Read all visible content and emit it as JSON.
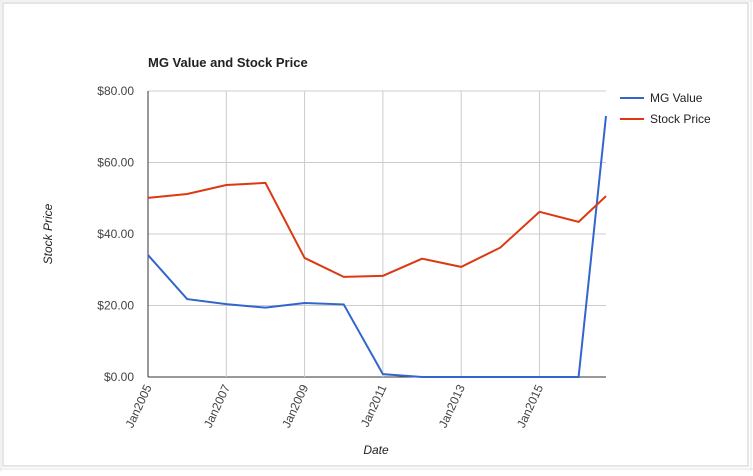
{
  "chart_data": {
    "type": "line",
    "title": "MG Value and Stock Price",
    "x_label": "Date",
    "y_label": "Stock Price",
    "x": [
      2005,
      2006,
      2007,
      2008,
      2009,
      2010,
      2011,
      2012,
      2013,
      2014,
      2015,
      2016,
      2016.7
    ],
    "series": [
      {
        "name": "MG Value",
        "color": "#3366cc",
        "values": [
          34.1,
          21.8,
          20.4,
          19.4,
          20.7,
          20.3,
          0.8,
          0,
          0,
          0,
          0,
          0,
          73.0
        ]
      },
      {
        "name": "Stock Price",
        "color": "#dc3912",
        "values": [
          50.1,
          51.2,
          53.7,
          54.3,
          33.3,
          28.0,
          28.3,
          33.1,
          30.8,
          36.2,
          46.2,
          43.4,
          50.6
        ]
      }
    ],
    "xlim": [
      2005,
      2016.7
    ],
    "xticks": [
      {
        "value": 2005,
        "label": "Jan2005"
      },
      {
        "value": 2007,
        "label": "Jan2007"
      },
      {
        "value": 2009,
        "label": "Jan2009"
      },
      {
        "value": 2011,
        "label": "Jan2011"
      },
      {
        "value": 2013,
        "label": "Jan2013"
      },
      {
        "value": 2015,
        "label": "Jan2015"
      }
    ],
    "ylim": [
      0,
      80
    ],
    "yticks": [
      {
        "value": 0,
        "label": "$0.00"
      },
      {
        "value": 20,
        "label": "$20.00"
      },
      {
        "value": 40,
        "label": "$40.00"
      },
      {
        "value": 60,
        "label": "$60.00"
      },
      {
        "value": 80,
        "label": "$80.00"
      }
    ],
    "grid": true,
    "legend": "right"
  }
}
